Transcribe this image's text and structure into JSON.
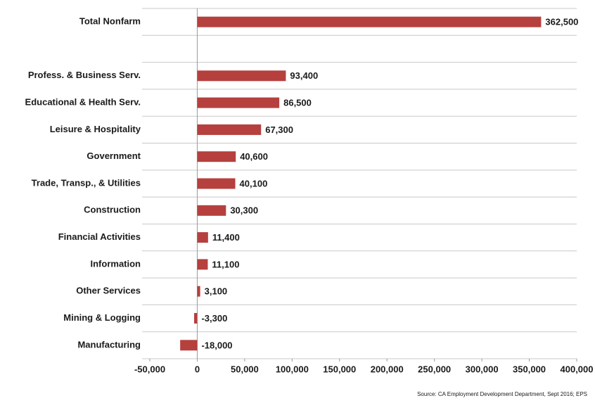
{
  "chart_data": {
    "type": "hbar",
    "categories": [
      "Total Nonfarm",
      null,
      "Profess. & Business Serv.",
      "Educational & Health Serv.",
      "Leisure & Hospitality",
      "Government",
      "Trade, Transp., & Utilities",
      "Construction",
      "Financial Activities",
      "Information",
      "Other Services",
      "Mining & Logging",
      "Manufacturing"
    ],
    "values": [
      362500,
      null,
      93400,
      86500,
      67300,
      40600,
      40100,
      30300,
      11400,
      11100,
      3100,
      -3300,
      -18000
    ],
    "value_labels": [
      "362,500",
      null,
      "93,400",
      "86,500",
      "67,300",
      "40,600",
      "40,100",
      "30,300",
      "11,400",
      "11,100",
      "3,100",
      "-3,300",
      "-18,000"
    ],
    "color": "#b5403e",
    "xlim": [
      -50000,
      400000
    ],
    "xticks": [
      {
        "value": -50000,
        "label": "-50,000"
      },
      0,
      {
        "value": 50000,
        "label": "50,000"
      },
      {
        "value": 100000,
        "label": "100,000"
      },
      {
        "value": 150000,
        "label": "150,000"
      },
      {
        "value": 200000,
        "label": "200,000"
      },
      {
        "value": 250000,
        "label": "250,000"
      },
      {
        "value": 300000,
        "label": "300,000"
      },
      {
        "value": 350000,
        "label": "350,000"
      },
      {
        "value": 400000,
        "label": "400,000"
      }
    ],
    "source": "Source:  CA Employment  Development Department, Sept 2016; EPS"
  }
}
